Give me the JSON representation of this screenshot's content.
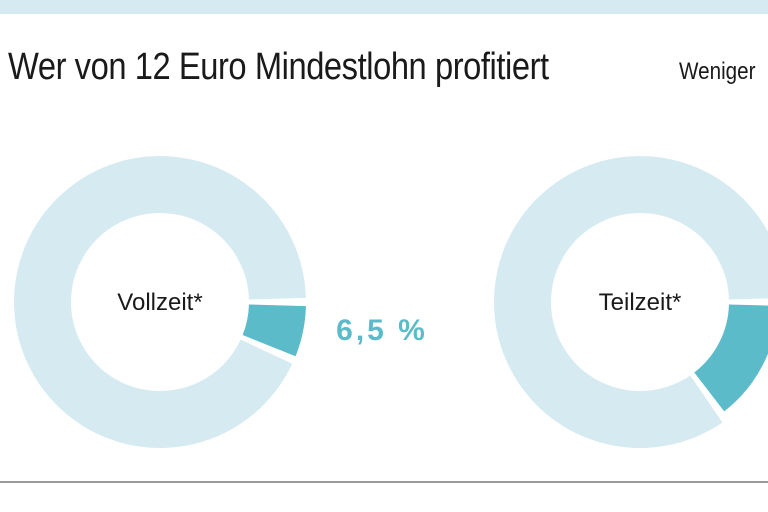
{
  "header": {
    "title": "Wer von 12 Euro Mindestlohn profitiert",
    "subtitle": "Weniger"
  },
  "colors": {
    "track": "#d6ebf1",
    "highlight": "#5bbbc9",
    "text": "#1a1a1a",
    "top_bar": "#d6ebf1",
    "rule": "#9a9a9a"
  },
  "chart_data": [
    {
      "type": "pie",
      "center_label": "Vollzeit*",
      "highlight_percent": 6.5,
      "value_label": "6,5 %"
    },
    {
      "type": "pie",
      "center_label": "Teilzeit*",
      "highlight_percent": 15,
      "value_label": ""
    }
  ]
}
